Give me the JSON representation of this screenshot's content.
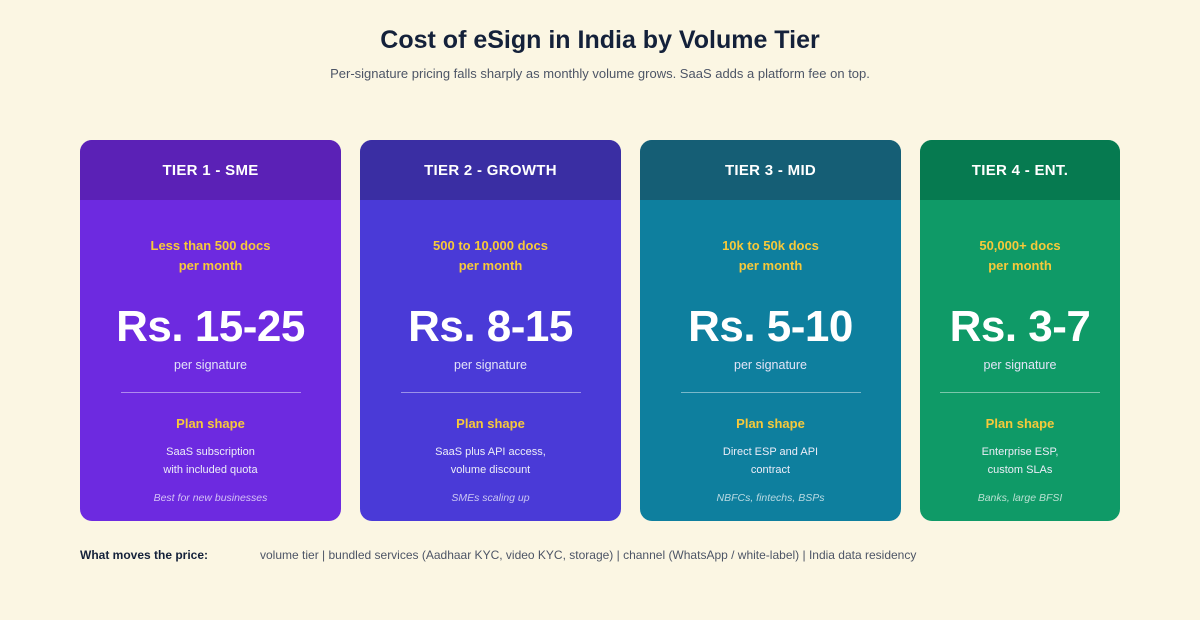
{
  "title": "Cost of eSign in India by Volume Tier",
  "subtitle": "Per-signature pricing falls sharply as monthly volume grows. SaaS adds a platform fee on top.",
  "tiers": [
    {
      "header": "TIER 1  -  SME",
      "volume_line1": "Less than 500 docs",
      "volume_line2": "per month",
      "price": "Rs. 15-25",
      "unit": "per signature",
      "plan_label": "Plan shape",
      "plan_line1": "SaaS subscription",
      "plan_line2": "with included quota",
      "best_for": "Best for new businesses",
      "header_color": "#5b21b6",
      "body_color": "#6d2ae0"
    },
    {
      "header": "TIER 2  -  GROWTH",
      "volume_line1": "500 to 10,000 docs",
      "volume_line2": "per month",
      "price": "Rs. 8-15",
      "unit": "per signature",
      "plan_label": "Plan shape",
      "plan_line1": "SaaS plus API access,",
      "plan_line2": "volume discount",
      "best_for": "SMEs scaling up",
      "header_color": "#3a2ea3",
      "body_color": "#4a3ad7"
    },
    {
      "header": "TIER 3  -  MID",
      "volume_line1": "10k to 50k docs",
      "volume_line2": "per month",
      "price": "Rs. 5-10",
      "unit": "per signature",
      "plan_label": "Plan shape",
      "plan_line1": "Direct ESP and API",
      "plan_line2": "contract",
      "best_for": "NBFCs, fintechs, BSPs",
      "header_color": "#155e75",
      "body_color": "#0e7f9e"
    },
    {
      "header": "TIER 4  -  ENT.",
      "volume_line1": "50,000+ docs",
      "volume_line2": "per month",
      "price": "Rs. 3-7",
      "unit": "per signature",
      "plan_label": "Plan shape",
      "plan_line1": "Enterprise ESP,",
      "plan_line2": "custom SLAs",
      "best_for": "Banks, large BFSI",
      "header_color": "#067a50",
      "body_color": "#0f9a67"
    }
  ],
  "footer": {
    "label": "What moves the price:",
    "text": "volume tier  |  bundled services (Aadhaar KYC, video KYC, storage)  |  channel (WhatsApp / white-label)  |  India data residency"
  }
}
